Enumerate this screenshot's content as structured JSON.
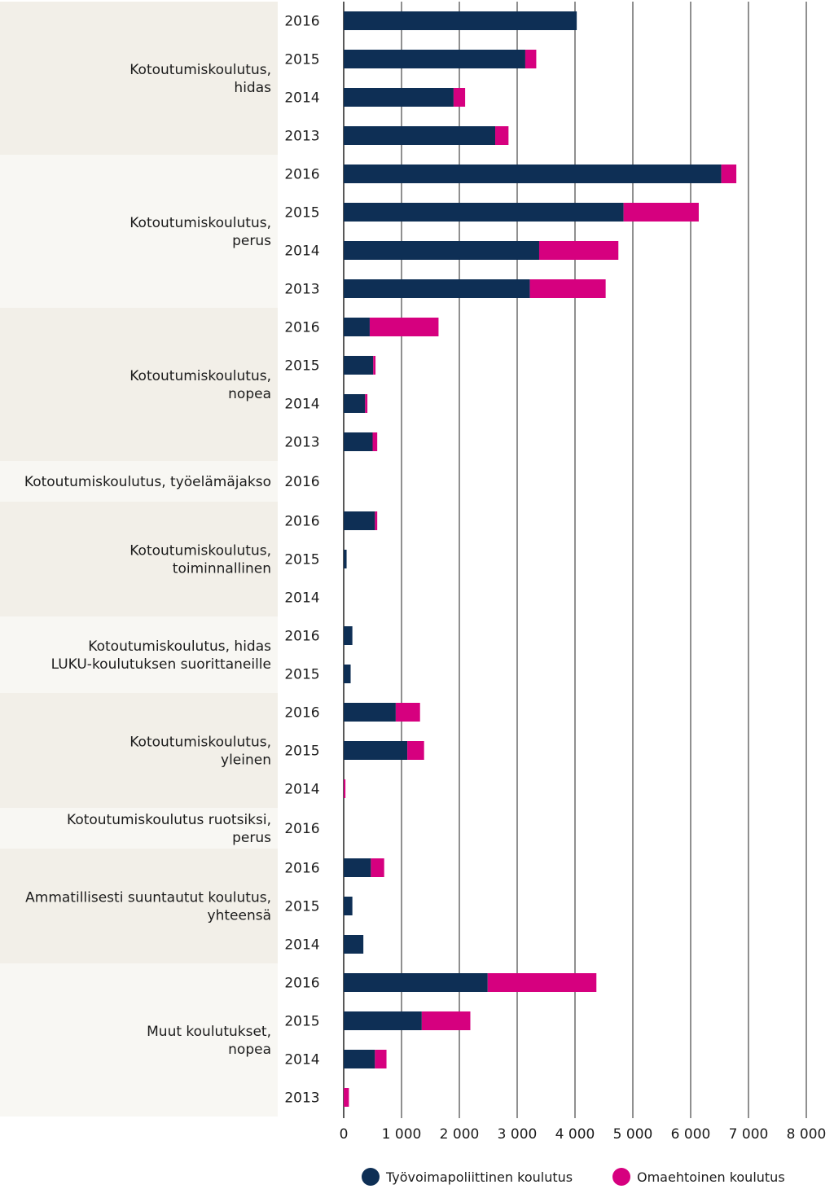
{
  "chart_data": {
    "type": "bar",
    "orientation": "horizontal",
    "stacked": true,
    "title": "",
    "xlabel": "",
    "ylabel": "",
    "xlim": [
      0,
      8000
    ],
    "x_ticks": [
      "0",
      "1 000",
      "2 000",
      "3 000",
      "4 000",
      "5 000",
      "6 000",
      "7 000",
      "8 000"
    ],
    "x_tick_values": [
      0,
      1000,
      2000,
      3000,
      4000,
      5000,
      6000,
      7000,
      8000
    ],
    "grid": true,
    "legend_position": "bottom-right",
    "colors": {
      "Työvoimapoliittinen koulutus": "#0e2f55",
      "Omaehtoinen koulutus": "#d6007f",
      "band_a": "#f2efe8",
      "band_b": "#f8f7f3"
    },
    "series": [
      {
        "name": "Työvoimapoliittinen koulutus",
        "color": "#0e2f55"
      },
      {
        "name": "Omaehtoinen koulutus",
        "color": "#d6007f"
      }
    ],
    "groups": [
      {
        "label": [
          "Kotoutumiskoulutus,",
          "hidas"
        ],
        "rows": [
          {
            "year": "2016",
            "tyovoimapoliittinen": 4030,
            "omaehtoinen": 0
          },
          {
            "year": "2015",
            "tyovoimapoliittinen": 3140,
            "omaehtoinen": 190
          },
          {
            "year": "2014",
            "tyovoimapoliittinen": 1900,
            "omaehtoinen": 200
          },
          {
            "year": "2013",
            "tyovoimapoliittinen": 2620,
            "omaehtoinen": 230
          }
        ]
      },
      {
        "label": [
          "Kotoutumiskoulutus,",
          "perus"
        ],
        "rows": [
          {
            "year": "2016",
            "tyovoimapoliittinen": 6530,
            "omaehtoinen": 260
          },
          {
            "year": "2015",
            "tyovoimapoliittinen": 4840,
            "omaehtoinen": 1300
          },
          {
            "year": "2014",
            "tyovoimapoliittinen": 3380,
            "omaehtoinen": 1370
          },
          {
            "year": "2013",
            "tyovoimapoliittinen": 3220,
            "omaehtoinen": 1310
          }
        ]
      },
      {
        "label": [
          "Kotoutumiskoulutus,",
          "nopea"
        ],
        "rows": [
          {
            "year": "2016",
            "tyovoimapoliittinen": 450,
            "omaehtoinen": 1190
          },
          {
            "year": "2015",
            "tyovoimapoliittinen": 510,
            "omaehtoinen": 40
          },
          {
            "year": "2014",
            "tyovoimapoliittinen": 370,
            "omaehtoinen": 40
          },
          {
            "year": "2013",
            "tyovoimapoliittinen": 500,
            "omaehtoinen": 80
          }
        ]
      },
      {
        "label": [
          "Kotoutumiskoulutus, työelämäjakso"
        ],
        "rows": [
          {
            "year": "2016",
            "tyovoimapoliittinen": 0,
            "omaehtoinen": 0
          }
        ]
      },
      {
        "label": [
          "Kotoutumiskoulutus,",
          "toiminnallinen"
        ],
        "rows": [
          {
            "year": "2016",
            "tyovoimapoliittinen": 540,
            "omaehtoinen": 40
          },
          {
            "year": "2015",
            "tyovoimapoliittinen": 50,
            "omaehtoinen": 0
          },
          {
            "year": "2014",
            "tyovoimapoliittinen": 0,
            "omaehtoinen": 0
          }
        ]
      },
      {
        "label": [
          "Kotoutumiskoulutus, hidas",
          "LUKU-koulutuksen suorittaneille"
        ],
        "rows": [
          {
            "year": "2016",
            "tyovoimapoliittinen": 150,
            "omaehtoinen": 0
          },
          {
            "year": "2015",
            "tyovoimapoliittinen": 120,
            "omaehtoinen": 0
          }
        ]
      },
      {
        "label": [
          "Kotoutumiskoulutus,",
          "yleinen"
        ],
        "rows": [
          {
            "year": "2016",
            "tyovoimapoliittinen": 900,
            "omaehtoinen": 420
          },
          {
            "year": "2015",
            "tyovoimapoliittinen": 1100,
            "omaehtoinen": 290
          },
          {
            "year": "2014",
            "tyovoimapoliittinen": 0,
            "omaehtoinen": 30
          }
        ]
      },
      {
        "label": [
          "Kotoutumiskoulutus ruotsiksi,",
          "perus"
        ],
        "rows": [
          {
            "year": "2016",
            "tyovoimapoliittinen": 0,
            "omaehtoinen": 0
          }
        ]
      },
      {
        "label": [
          "Ammatillisesti suuntautut koulutus,",
          "yhteensä"
        ],
        "rows": [
          {
            "year": "2016",
            "tyovoimapoliittinen": 470,
            "omaehtoinen": 230
          },
          {
            "year": "2015",
            "tyovoimapoliittinen": 150,
            "omaehtoinen": 0
          },
          {
            "year": "2014",
            "tyovoimapoliittinen": 340,
            "omaehtoinen": 0
          }
        ]
      },
      {
        "label": [
          "Muut koulutukset,",
          "nopea"
        ],
        "rows": [
          {
            "year": "2016",
            "tyovoimapoliittinen": 2490,
            "omaehtoinen": 1880
          },
          {
            "year": "2015",
            "tyovoimapoliittinen": 1350,
            "omaehtoinen": 840
          },
          {
            "year": "2014",
            "tyovoimapoliittinen": 540,
            "omaehtoinen": 200
          },
          {
            "year": "2013",
            "tyovoimapoliittinen": 0,
            "omaehtoinen": 90
          }
        ]
      }
    ]
  }
}
